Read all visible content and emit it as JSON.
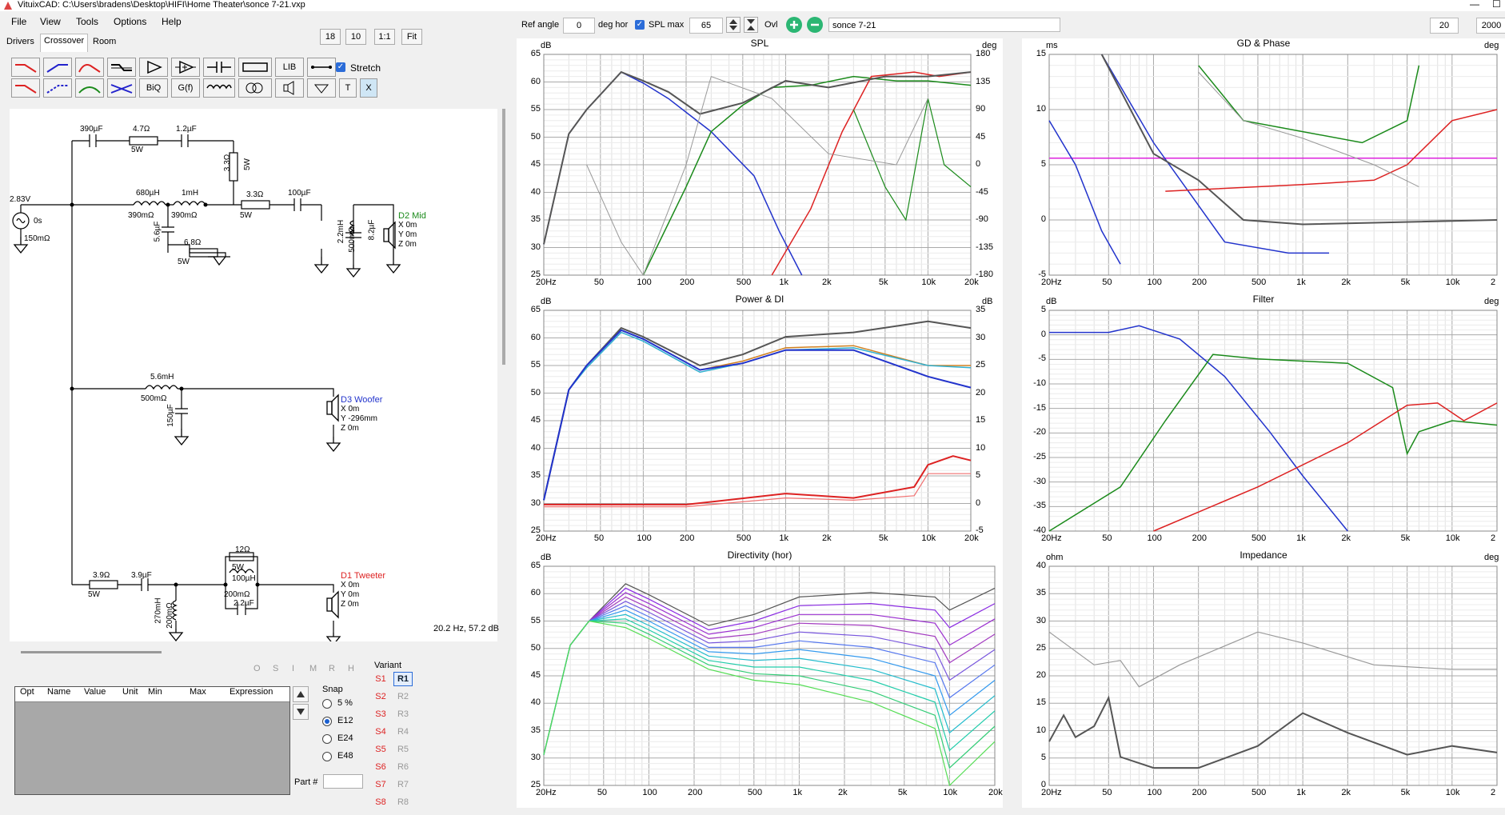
{
  "window": {
    "title": "VituixCAD: C:\\Users\\bradens\\Desktop\\HIFI\\Home Theater\\sonce 7-21.vxp"
  },
  "menu": [
    "File",
    "View",
    "Tools",
    "Options",
    "Help"
  ],
  "tabs": [
    "Drivers",
    "Crossover",
    "Room"
  ],
  "zoom_buttons": [
    "18",
    "10",
    "1:1",
    "Fit"
  ],
  "toolbar": {
    "lib": "LIB",
    "biq": "BiQ",
    "gf": "G(f)",
    "t": "T",
    "x": "X",
    "stretch_label": "Stretch"
  },
  "top_controls": {
    "ref_angle_label": "Ref angle",
    "ref_angle_value": "0",
    "deg_hor_label": "deg hor",
    "spl_max_label": "SPL max",
    "spl_max_value": "65",
    "ovl_label": "Ovl",
    "overlay_name": "sonce 7-21",
    "right_value": "20",
    "right_value2": "2000"
  },
  "schematic": {
    "status": "20.2 Hz, 57.2 dB",
    "source": {
      "voltage": "2.83V",
      "delay": "0s",
      "resistance": "150mΩ"
    },
    "labels": {
      "c390": "390µF",
      "r47": "4.7Ω",
      "w5a": "5W",
      "c12": "1.2µF",
      "r33v": "3.3Ω",
      "w5b": "5W",
      "l680": "680µH",
      "r390a": "390mΩ",
      "l1m": "1mH",
      "r390b": "390mΩ",
      "r33h": "3.3Ω",
      "w5c": "5W",
      "c100": "100µF",
      "c56": "5.6µF",
      "r68": "6.8Ω",
      "w5d": "5W",
      "l22": "2.2mH",
      "r500": "500mΩ",
      "c82": "8.2µF",
      "l56m": "5.6mH",
      "r500b": "500mΩ",
      "c150": "150µF",
      "r39": "3.9Ω",
      "w5e": "5W",
      "c39": "3.9µF",
      "l270": "270mH",
      "r200a": "200mΩ",
      "r12": "12Ω",
      "w5f": "5W",
      "l100": "100µH",
      "r200b": "200mΩ",
      "c22": "2.2µF"
    },
    "drivers": [
      {
        "name": "D2 Mid",
        "color": "#1a8a1a",
        "x": "X 0m",
        "y": "Y 0m",
        "z": "Z 0m"
      },
      {
        "name": "D3 Woofer",
        "color": "#2233cc",
        "x": "X 0m",
        "y": "Y -296mm",
        "z": "Z 0m"
      },
      {
        "name": "D1 Tweeter",
        "color": "#dd2222",
        "x": "X 0m",
        "y": "Y 0m",
        "z": "Z 0m"
      }
    ]
  },
  "param_table": {
    "headers": [
      "Opt",
      "Name",
      "Value",
      "Unit",
      "Min",
      "Max",
      "Expression"
    ],
    "osi": [
      "O",
      "S",
      "I",
      "M",
      "R",
      "H"
    ]
  },
  "snap": {
    "title": "Snap",
    "options": [
      "5 %",
      "E12",
      "E24",
      "E48"
    ],
    "selected": "E12"
  },
  "part_label": "Part #",
  "variant": {
    "title": "Variant",
    "s": [
      "S1",
      "S2",
      "S3",
      "S4",
      "S5",
      "S6",
      "S7",
      "S8"
    ],
    "r": [
      "R1",
      "R2",
      "R3",
      "R4",
      "R5",
      "R6",
      "R7",
      "R8"
    ],
    "active": "R1"
  },
  "freq_ticks": [
    "20Hz",
    "50",
    "100",
    "200",
    "500",
    "1k",
    "2k",
    "5k",
    "10k",
    "20k"
  ],
  "charts": {
    "spl": {
      "title": "SPL",
      "yunit": "dB",
      "y2unit": "deg",
      "yticks": [
        "65",
        "60",
        "55",
        "50",
        "45",
        "40",
        "35",
        "30",
        "25"
      ],
      "y2ticks": [
        "180",
        "135",
        "90",
        "45",
        "0",
        "-45",
        "-90",
        "-135",
        "-180"
      ]
    },
    "gd": {
      "title": "GD & Phase",
      "yunit": "ms",
      "y2unit": "deg",
      "yticks": [
        "15",
        "10",
        "5",
        "0",
        "-5"
      ],
      "xticks": [
        "20Hz",
        "50",
        "100",
        "200",
        "500",
        "1k",
        "2k",
        "5k",
        "10k",
        "2"
      ]
    },
    "power": {
      "title": "Power & DI",
      "yunit": "dB",
      "y2unit": "dB",
      "yticks": [
        "65",
        "60",
        "55",
        "50",
        "45",
        "40",
        "35",
        "30",
        "25"
      ],
      "y2ticks": [
        "35",
        "30",
        "25",
        "20",
        "15",
        "10",
        "5",
        "0",
        "-5"
      ]
    },
    "filter": {
      "title": "Filter",
      "yunit": "dB",
      "y2unit": "deg",
      "yticks": [
        "5",
        "0",
        "-5",
        "-10",
        "-15",
        "-20",
        "-25",
        "-30",
        "-35",
        "-40"
      ],
      "xticks": [
        "20Hz",
        "50",
        "100",
        "200",
        "500",
        "1k",
        "2k",
        "5k",
        "10k",
        "2"
      ]
    },
    "dir": {
      "title": "Directivity (hor)",
      "yunit": "dB",
      "yticks": [
        "65",
        "60",
        "55",
        "50",
        "45",
        "40",
        "35",
        "30",
        "25"
      ]
    },
    "imp": {
      "title": "Impedance",
      "yunit": "ohm",
      "y2unit": "deg",
      "yticks": [
        "40",
        "35",
        "30",
        "25",
        "20",
        "15",
        "10",
        "5",
        "0"
      ],
      "xticks": [
        "20Hz",
        "50",
        "100",
        "200",
        "500",
        "1k",
        "2k",
        "5k",
        "10k",
        "2"
      ]
    }
  },
  "colors": {
    "woofer": "#2233cc",
    "mid": "#1a8a1a",
    "tweeter": "#dd2222",
    "sum": "#555555",
    "gd_line": "#dd22dd"
  }
}
